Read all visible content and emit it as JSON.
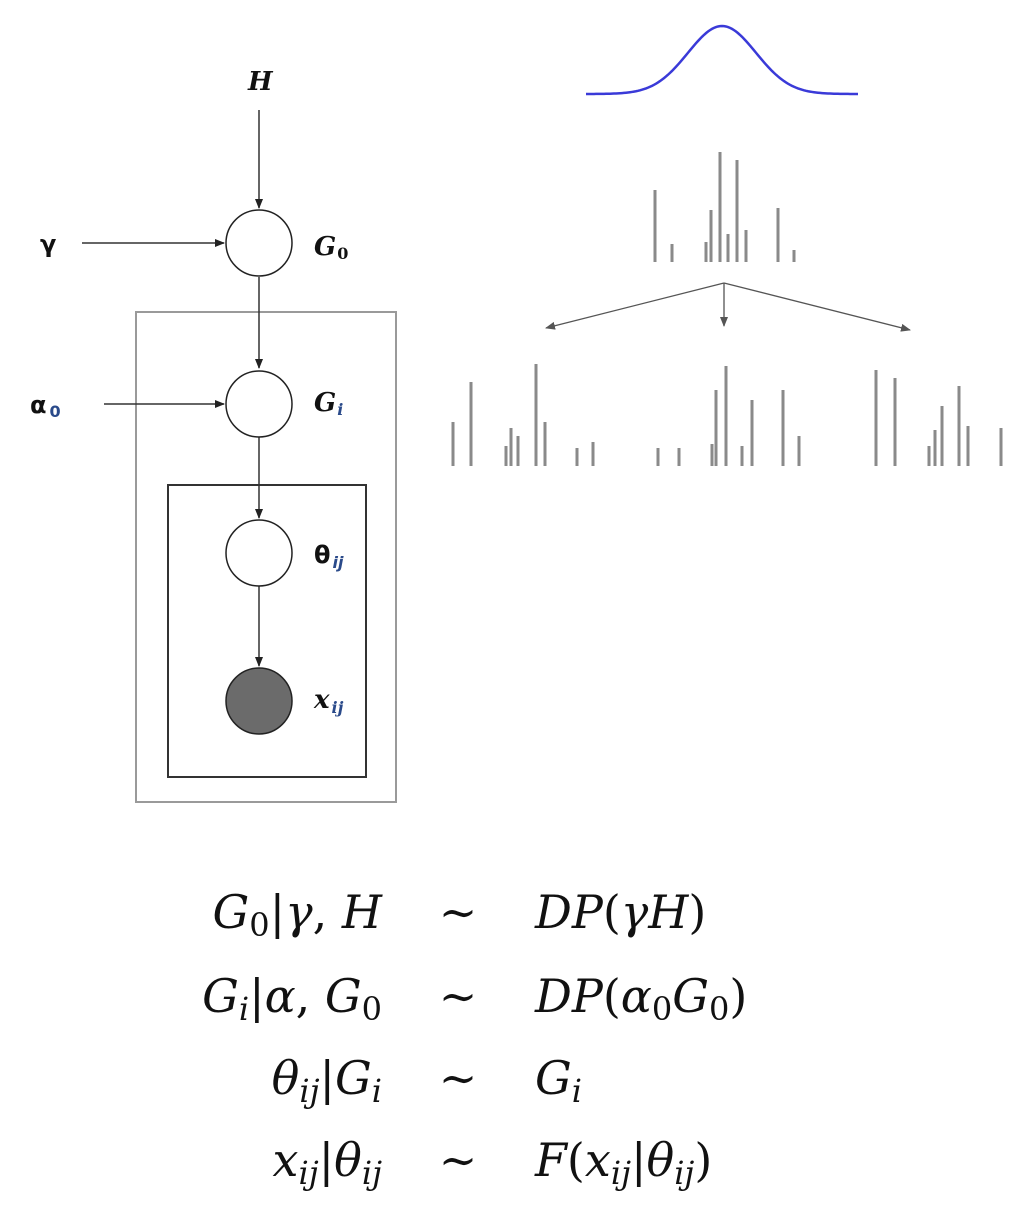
{
  "graph": {
    "nodes": {
      "H": {
        "label": "H"
      },
      "gamma": {
        "label": "γ"
      },
      "alpha0": {
        "label": "α",
        "sub": "0"
      },
      "G0": {
        "label": "G",
        "sub": "0"
      },
      "Gi": {
        "label": "G",
        "sub": "i"
      },
      "theta": {
        "label": "θ",
        "sub": "ij"
      },
      "x": {
        "label": "x",
        "sub": "ij",
        "observed": true
      }
    }
  },
  "equations": [
    {
      "lhs": "G₀|γ, H",
      "rel": "∼",
      "rhs": "DP(γH)"
    },
    {
      "lhs": "Gᵢ|α, G₀",
      "rel": "∼",
      "rhs": "DP(α₀G₀)"
    },
    {
      "lhs": "θᵢⱼ|Gᵢ",
      "rel": "∼",
      "rhs": "Gᵢ"
    },
    {
      "lhs": "xᵢⱼ|θᵢⱼ",
      "rel": "∼",
      "rhs": "F(xᵢⱼ|θᵢⱼ)"
    }
  ],
  "colors": {
    "curve": "#3a3ad8",
    "observed_fill": "#6b6b6b",
    "spike": "#8a8a8a",
    "inner_plate": "#333333",
    "outer_plate": "#9a9a9a"
  }
}
